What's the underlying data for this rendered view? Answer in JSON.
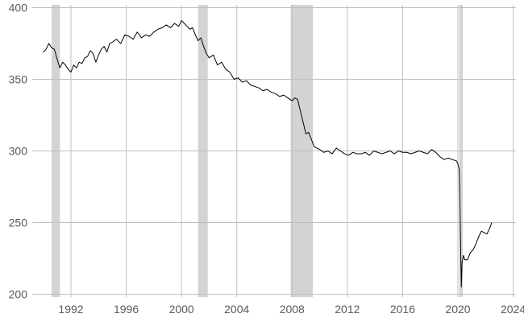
{
  "chart_data": {
    "type": "line",
    "title": "",
    "xlabel": "",
    "ylabel": "",
    "xlim": [
      1989.2,
      2024.2
    ],
    "ylim": [
      198,
      402
    ],
    "x_ticks": [
      1992,
      1996,
      2000,
      2004,
      2008,
      2012,
      2016,
      2020,
      2024
    ],
    "y_ticks": [
      200,
      250,
      300,
      350,
      400
    ],
    "grid": true,
    "recession_bands": [
      {
        "start": 1990.6,
        "end": 1991.2
      },
      {
        "start": 2001.2,
        "end": 2001.9
      },
      {
        "start": 2007.9,
        "end": 2009.5
      },
      {
        "start": 2020.1,
        "end": 2020.35
      }
    ],
    "colors": {
      "line": "#000000",
      "recession": "#d3d3d3",
      "grid": "#bfbfbf",
      "tick_text": "#595959"
    },
    "series": [
      {
        "x": [
          1990.0,
          1990.2,
          1990.4,
          1990.6,
          1990.8,
          1991.0,
          1991.2,
          1991.4,
          1991.6,
          1991.8,
          1992.0,
          1992.2,
          1992.4,
          1992.6,
          1992.8,
          1993.0,
          1993.2,
          1993.4,
          1993.6,
          1993.8,
          1994.0,
          1994.2,
          1994.4,
          1994.6,
          1994.8,
          1995.0,
          1995.3,
          1995.6,
          1995.9,
          1996.2,
          1996.5,
          1996.8,
          1997.1,
          1997.4,
          1997.7,
          1998.0,
          1998.3,
          1998.6,
          1998.9,
          1999.2,
          1999.5,
          1999.8,
          2000.0,
          2000.2,
          2000.4,
          2000.6,
          2000.8,
          2001.0,
          2001.2,
          2001.4,
          2001.6,
          2001.8,
          2002.0,
          2002.3,
          2002.6,
          2002.9,
          2003.2,
          2003.5,
          2003.8,
          2004.1,
          2004.4,
          2004.7,
          2005.0,
          2005.3,
          2005.6,
          2005.9,
          2006.2,
          2006.5,
          2006.8,
          2007.1,
          2007.4,
          2007.7,
          2008.0,
          2008.2,
          2008.4,
          2008.6,
          2008.8,
          2009.0,
          2009.2,
          2009.4,
          2009.6,
          2009.8,
          2010.0,
          2010.3,
          2010.6,
          2010.9,
          2011.2,
          2011.5,
          2011.8,
          2012.1,
          2012.4,
          2012.7,
          2013.0,
          2013.3,
          2013.6,
          2013.9,
          2014.2,
          2014.5,
          2014.8,
          2015.1,
          2015.4,
          2015.7,
          2016.0,
          2016.3,
          2016.6,
          2016.9,
          2017.2,
          2017.5,
          2017.8,
          2018.1,
          2018.4,
          2018.7,
          2019.0,
          2019.3,
          2019.6,
          2019.9,
          2020.0,
          2020.1,
          2020.15,
          2020.2,
          2020.25,
          2020.3,
          2020.4,
          2020.5,
          2020.7,
          2020.9,
          2021.1,
          2021.3,
          2021.5,
          2021.7,
          2021.9,
          2022.1,
          2022.3,
          2022.45
        ],
        "y": [
          369,
          371,
          375,
          372,
          371,
          364,
          358,
          362,
          360,
          357,
          355,
          360,
          358,
          362,
          361,
          365,
          366,
          370,
          368,
          362,
          367,
          371,
          373,
          369,
          375,
          376,
          378,
          375,
          381,
          380,
          378,
          383,
          379,
          381,
          380,
          383,
          385,
          386,
          388,
          386,
          389,
          387,
          391,
          389,
          387,
          385,
          386,
          381,
          377,
          379,
          373,
          368,
          365,
          367,
          360,
          362,
          357,
          355,
          350,
          351,
          348,
          349,
          346,
          345,
          344,
          342,
          343,
          341,
          340,
          338,
          339,
          337,
          335,
          337,
          336,
          328,
          320,
          312,
          313,
          308,
          303,
          302,
          301,
          299,
          300,
          298,
          302,
          300,
          298,
          297,
          299,
          298,
          298,
          299,
          297,
          300,
          299,
          298,
          299,
          300,
          298,
          300,
          299,
          299,
          298,
          299,
          300,
          299,
          298,
          301,
          299,
          296,
          294,
          295,
          294,
          293,
          291,
          287,
          262,
          230,
          205,
          222,
          227,
          224,
          224,
          229,
          231,
          235,
          240,
          244,
          243,
          242,
          246,
          250
        ]
      }
    ]
  }
}
